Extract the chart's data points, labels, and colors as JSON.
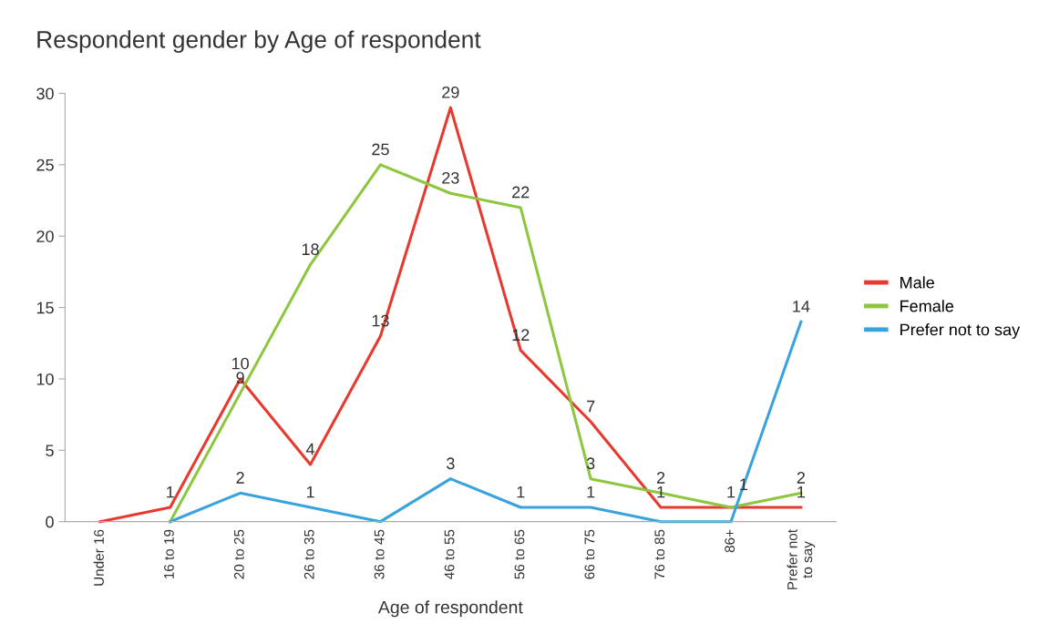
{
  "chart_data": {
    "type": "line",
    "title": "Respondent gender by Age of respondent",
    "xlabel": "Age of respondent",
    "categories": [
      "Under 16",
      "16 to 19",
      "20 to 25",
      "26 to 35",
      "36 to 45",
      "46 to 55",
      "56 to 65",
      "66 to 75",
      "76 to 85",
      "86+",
      "Prefer not\nto say"
    ],
    "series": [
      {
        "name": "Male",
        "color": "#e8392f",
        "values": [
          0,
          1,
          10,
          4,
          13,
          29,
          12,
          7,
          1,
          1,
          1
        ],
        "value_labels": [
          null,
          "1",
          "10",
          "4",
          "13",
          "29",
          "12",
          "7",
          "1",
          "1",
          "1"
        ]
      },
      {
        "name": "Female",
        "color": "#8dc63f",
        "values": [
          null,
          0,
          9,
          18,
          25,
          23,
          22,
          3,
          2,
          1,
          2
        ],
        "value_labels": [
          null,
          null,
          "9",
          "18",
          "25",
          "23",
          "22",
          "3",
          "2",
          "1",
          "2"
        ]
      },
      {
        "name": "Prefer not to say",
        "color": "#38a3dc",
        "values": [
          null,
          0,
          2,
          1,
          0,
          3,
          1,
          1,
          0,
          0,
          14
        ],
        "value_labels": [
          null,
          null,
          "2",
          "1",
          null,
          "3",
          "1",
          "1",
          null,
          null,
          "14"
        ]
      }
    ],
    "ylim": [
      0,
      30
    ],
    "yticks": [
      0,
      5,
      10,
      15,
      20,
      25,
      30
    ],
    "grid": false,
    "legend": "right",
    "marker": "none",
    "line_style": "solid"
  }
}
